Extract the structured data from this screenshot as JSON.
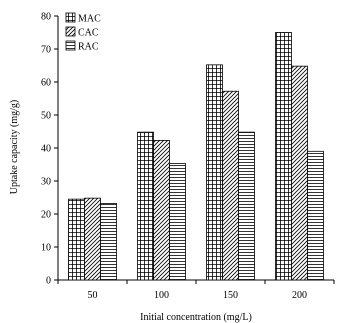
{
  "chart_data": {
    "type": "bar",
    "title": "",
    "xlabel": "Initial concentration (mg/L)",
    "ylabel": "Uptake capacity (mg/g)",
    "categories": [
      "50",
      "100",
      "150",
      "200"
    ],
    "ylim": [
      0,
      80
    ],
    "yticks": [
      0,
      10,
      20,
      30,
      40,
      50,
      60,
      70,
      80
    ],
    "grid": false,
    "legend_position": "top-left",
    "series": [
      {
        "name": "MAC",
        "pattern": "grid",
        "values": [
          24.5,
          44.8,
          65.2,
          75.0
        ]
      },
      {
        "name": "CAC",
        "pattern": "diagonal",
        "values": [
          24.8,
          42.3,
          57.2,
          64.8
        ]
      },
      {
        "name": "RAC",
        "pattern": "horizontal",
        "values": [
          23.2,
          35.3,
          44.8,
          39.0
        ]
      }
    ]
  }
}
